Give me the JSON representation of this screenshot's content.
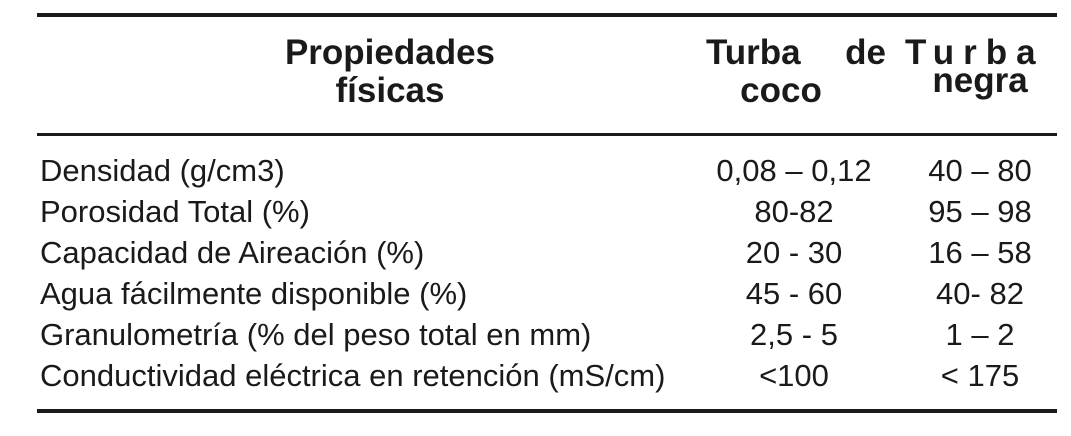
{
  "table": {
    "headers": {
      "property_line1": "Propiedades",
      "property_line2": "físicas",
      "coco_line1_a": "Turba",
      "coco_line1_b": "de",
      "coco_line2": "coco",
      "negra_line1": "Turba",
      "negra_line2": "negra"
    },
    "rows": [
      {
        "property": "Densidad (g/cm3)",
        "coco": "0,08 – 0,12",
        "negra": "40 – 80"
      },
      {
        "property": "Porosidad Total (%)",
        "coco": "80-82",
        "negra": "95 – 98"
      },
      {
        "property": "Capacidad de Aireación (%)",
        "coco": "20 - 30",
        "negra": "16 – 58"
      },
      {
        "property": "Agua fácilmente disponible (%)",
        "coco": "45 - 60",
        "negra": "40-  82"
      },
      {
        "property": "Granulometría (% del peso total en mm)",
        "coco": "2,5 - 5",
        "negra": "1 – 2"
      },
      {
        "property": "Conductividad eléctrica en retención (mS/cm)",
        "coco": "<100",
        "negra": "< 175"
      }
    ]
  }
}
